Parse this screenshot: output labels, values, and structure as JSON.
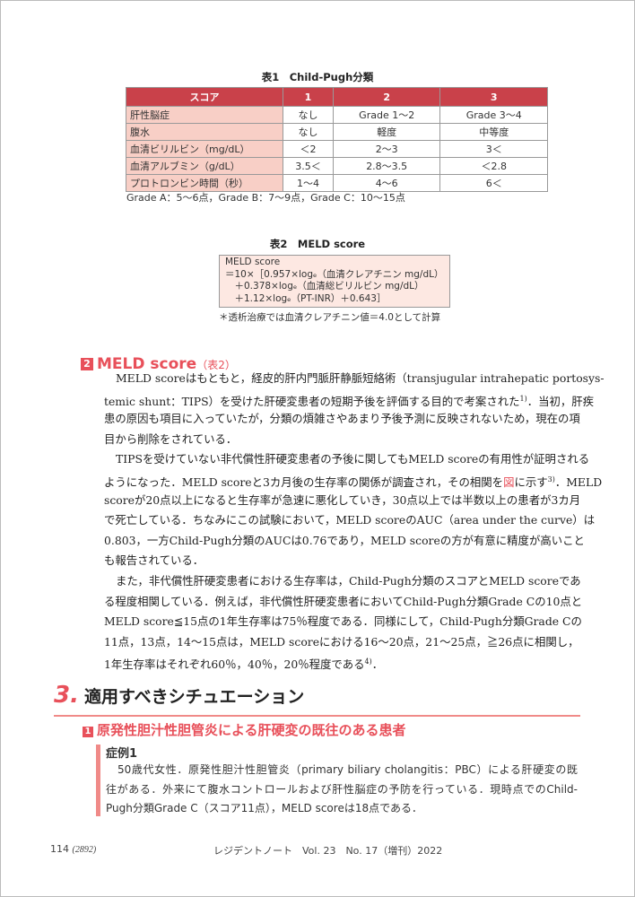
{
  "table1": {
    "caption": "表1　Child-Pugh分類",
    "headers": [
      "スコア",
      "1",
      "2",
      "3"
    ],
    "rows": [
      [
        "肝性脳症",
        "なし",
        "Grade 1～2",
        "Grade 3～4"
      ],
      [
        "腹水",
        "なし",
        "軽度",
        "中等度"
      ],
      [
        "血清ビリルビン（mg/dL）",
        "＜2",
        "2～3",
        "3＜"
      ],
      [
        "血清アルブミン（g/dL）",
        "3.5＜",
        "2.8～3.5",
        "＜2.8"
      ],
      [
        "プロトロンビン時間（秒）",
        "1～4",
        "4～6",
        "6＜"
      ]
    ],
    "note": "Grade A：5～6点，Grade B：7～9点，Grade C：10～15点"
  },
  "table2": {
    "caption": "表2　MELD score",
    "lines": [
      "MELD score",
      "＝10×［0.957×logₑ（血清クレアチニン mg/dL）",
      "　＋0.378×logₑ（血清総ビリルビン mg/dL）",
      "　＋1.12×logₑ（PT-INR）＋0.643］"
    ],
    "note": "＊透析治療では血清クレアチニン値＝4.0として計算"
  },
  "section2": {
    "num": "2",
    "title": "MELD score",
    "ref": "（表2）"
  },
  "paragraphs": [
    [
      [
        {
          "t": "MELD scoreはもともと，経皮的肝内門脈肝静脈短絡術（transjugular intrahepatic portosys-"
        }
      ],
      [
        {
          "t": "temic shunt：TIPS）を受けた肝硬変患者の短期予後を評価する目的で考案された"
        },
        {
          "t": "1)",
          "sup": true
        },
        {
          "t": "．当初，肝疾"
        }
      ],
      [
        {
          "t": "患の原因も項目に入っていたが，分類の煩雑さやあまり予後予測に反映されないため，現在の項"
        }
      ],
      [
        {
          "t": "目から削除をされている．"
        }
      ]
    ],
    [
      [
        {
          "t": "TIPSを受けていない非代償性肝硬変患者の予後に関してもMELD scoreの有用性が証明される"
        }
      ],
      [
        {
          "t": "ようになった．MELD scoreと3カ月後の生存率の関係が調査され，その相関を"
        },
        {
          "t": "図",
          "red": true
        },
        {
          "t": "に示す"
        },
        {
          "t": "3)",
          "sup": true
        },
        {
          "t": "．MELD"
        }
      ],
      [
        {
          "t": "scoreが20点以上になると生存率が急速に悪化していき，30点以上では半数以上の患者が3カ月"
        }
      ],
      [
        {
          "t": "で死亡している．ちなみにこの試験において，MELD scoreのAUC（area under the curve）は"
        }
      ],
      [
        {
          "t": "0.803，一方Child-Pugh分類のAUCは0.76であり，MELD scoreの方が有意に精度が高いこと"
        }
      ],
      [
        {
          "t": "も報告されている．"
        }
      ]
    ],
    [
      [
        {
          "t": "また，非代償性肝硬変患者における生存率は，Child-Pugh分類のスコアとMELD scoreであ"
        }
      ],
      [
        {
          "t": "る程度相関している．例えば，非代償性肝硬変患者においてChild-Pugh分類Grade Cの10点と"
        }
      ],
      [
        {
          "t": "MELD score≦15点の1年生存率は75％程度である．同様にして，Child-Pugh分類Grade Cの"
        }
      ],
      [
        {
          "t": "11点，13点，14～15点は，MELD scoreにおける16～20点，21～25点，≧26点に相関し，"
        }
      ],
      [
        {
          "t": "1年生存率はそれぞれ60％，40％，20％程度である"
        },
        {
          "t": "4)",
          "sup": true
        },
        {
          "t": "．"
        }
      ]
    ]
  ],
  "section3": {
    "num": "3.",
    "title": "適用すべきシチュエーション"
  },
  "subsection": {
    "num": "1",
    "title": "原発性胆汁性胆管炎による肝硬変の既往のある患者"
  },
  "case": {
    "title": "症例1",
    "lines": [
      "50歳代女性．原発性胆汁性胆管炎（primary biliary cholangitis：PBC）による肝硬変の既",
      "往がある．外来にて腹水コントロールおよび肝性脳症の予防を行っている．現時点でのChild-",
      "Pugh分類Grade C（スコア11点），MELD scoreは18点である．"
    ]
  },
  "footer": {
    "page": "114",
    "page_total": "(2892)",
    "journal": "レジデントノート　Vol. 23　No. 17（増刊）2022"
  },
  "colors": {
    "accent": "#e8505a",
    "table_header": "#c9414a",
    "table_label_bg": "#f8cfc6"
  }
}
